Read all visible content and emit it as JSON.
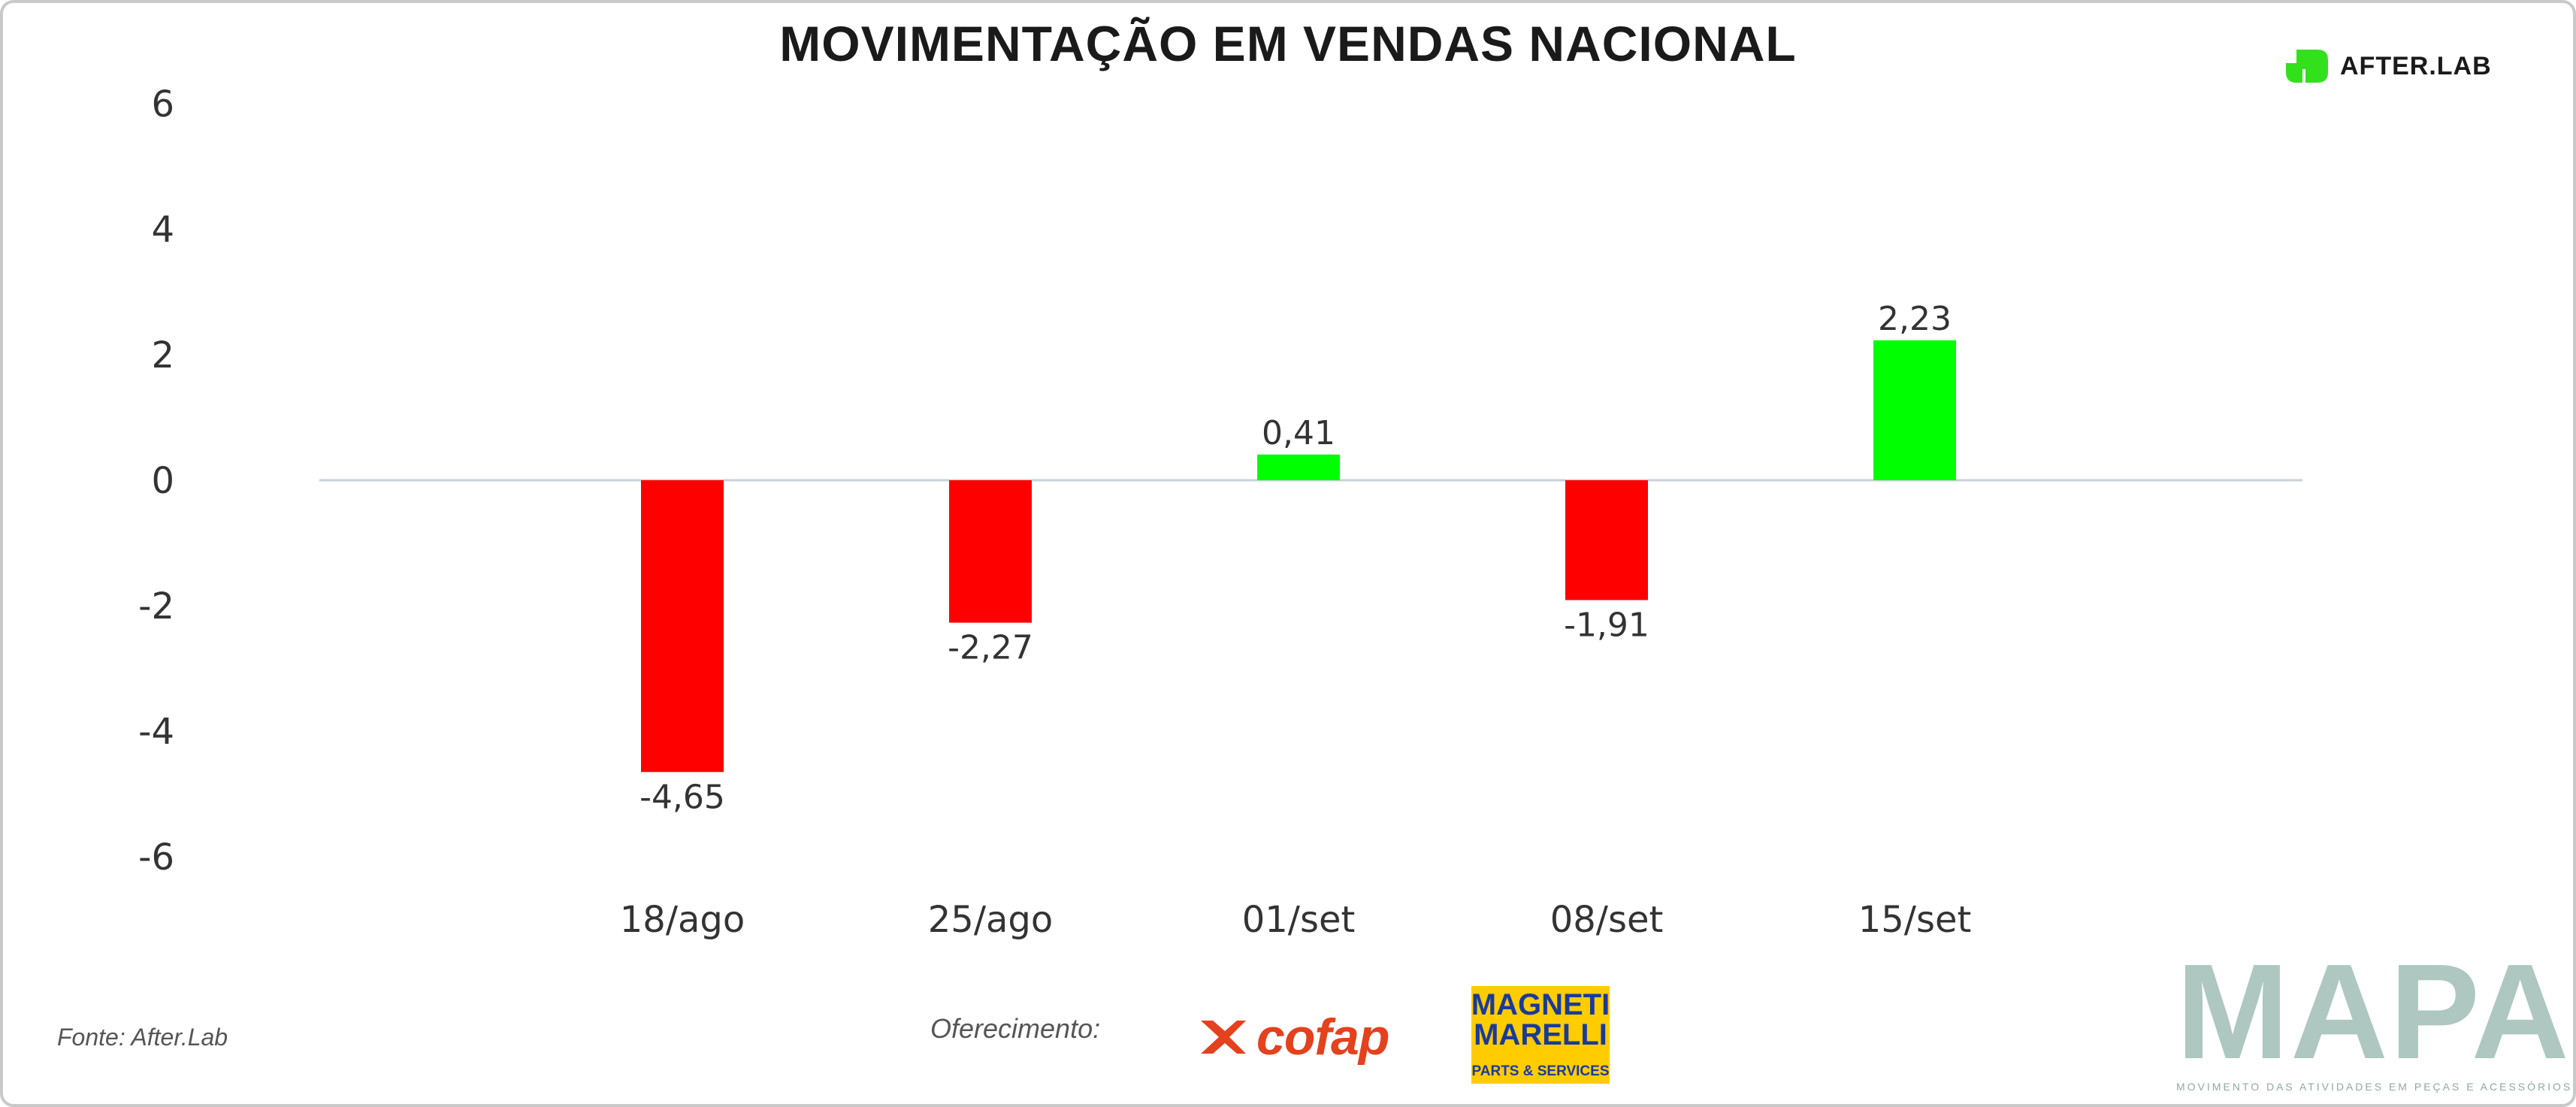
{
  "header": {
    "title": "MOVIMENTAÇÃO EM VENDAS NACIONAL"
  },
  "brand": {
    "afterlab_label": "AFTER.LAB",
    "afterlab_color": "#33e01c"
  },
  "footer": {
    "source": "Fonte: After.Lab",
    "sponsor_label": "Oferecimento:",
    "cofap_label": "cofap",
    "magneti_line1": "MAGNETI",
    "magneti_line2": "MARELLI",
    "magneti_sub": "PARTS & SERVICES",
    "mapa_label": "MAPA",
    "mapa_sub": "MOVIMENTO DAS ATIVIDADES EM PEÇAS E ACESSÓRIOS"
  },
  "colors": {
    "positive": "#00ff00",
    "negative": "#ff0000",
    "baseline": "#c8d2d8"
  },
  "chart_data": {
    "type": "bar",
    "title": "MOVIMENTAÇÃO EM VENDAS NACIONAL",
    "xlabel": "",
    "ylabel": "",
    "categories": [
      "18/ago",
      "25/ago",
      "01/set",
      "08/set",
      "15/set"
    ],
    "values": [
      -4.65,
      -2.27,
      0.41,
      -1.91,
      2.23
    ],
    "value_labels": [
      "-4,65",
      "-2,27",
      "0,41",
      "-1,91",
      "2,23"
    ],
    "ylim": [
      -6,
      6
    ],
    "yticks": [
      6,
      4,
      2,
      0,
      -2,
      -4,
      -6
    ],
    "ytick_labels": [
      "6",
      "4",
      "2",
      "0",
      "-2",
      "-4",
      "-6"
    ],
    "grid": false,
    "legend": "none"
  }
}
